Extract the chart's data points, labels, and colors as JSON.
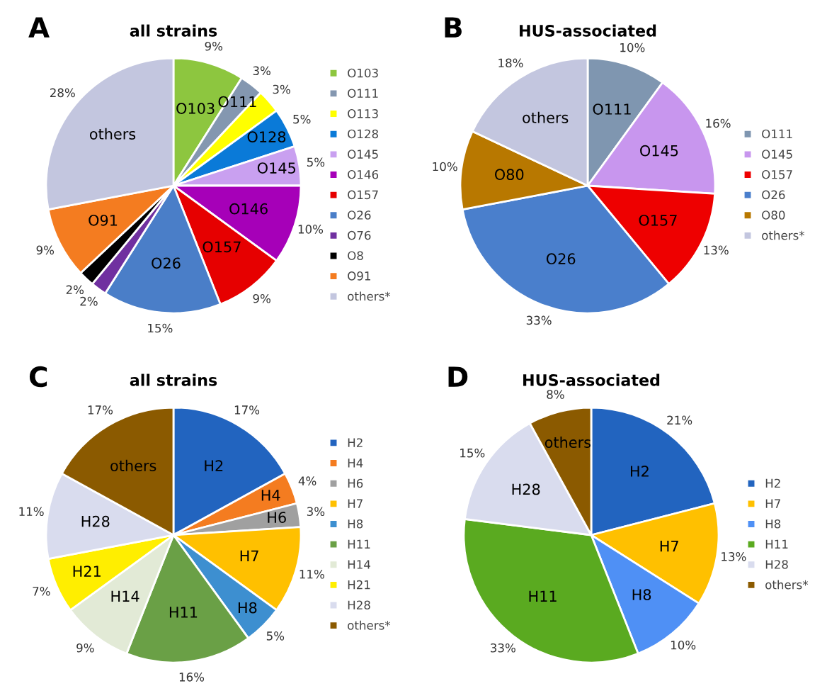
{
  "chart_data": [
    {
      "type": "pie",
      "title": "all strains",
      "legend": "right",
      "categories": [
        "O103",
        "O111",
        "O113",
        "O128",
        "O145",
        "O146",
        "O157",
        "O26",
        "O76",
        "O8",
        "O91",
        "others*"
      ],
      "values": [
        9,
        3,
        3,
        5,
        5,
        10,
        9,
        15,
        2,
        2,
        9,
        28
      ],
      "value_labels": [
        "9%",
        "3%",
        "3%",
        "5%",
        "5%",
        "10%",
        "9%",
        "15%",
        "2%",
        "2%",
        "9%",
        "28%"
      ],
      "colors": [
        "#8dc63f",
        "#8497b0",
        "#ffff00",
        "#0a7ad8",
        "#c9a0f0",
        "#a600b8",
        "#e60000",
        "#4a7ec8",
        "#7030a0",
        "#000000",
        "#f47c20",
        "#c3c6df"
      ],
      "annotations": [
        "A",
        {
          "text": "O103",
          "x": "O103"
        },
        {
          "text": "O111",
          "x": "O111"
        },
        {
          "text": "O128",
          "x": "O128"
        },
        {
          "text": "O145",
          "x": "O145"
        },
        {
          "text": "O146",
          "x": "O146"
        },
        {
          "text": "O157",
          "x": "O157"
        },
        {
          "text": "O26",
          "x": "O26"
        },
        {
          "text": "O91",
          "x": "O91"
        },
        {
          "text": "others",
          "x": "others*"
        }
      ]
    },
    {
      "type": "pie",
      "title": "HUS-associated",
      "legend": "right",
      "categories": [
        "O111",
        "O145",
        "O157",
        "O26",
        "O80",
        "others*"
      ],
      "values": [
        10,
        16,
        13,
        33,
        10,
        18
      ],
      "value_labels": [
        "10%",
        "16%",
        "13%",
        "33%",
        "10%",
        "18%"
      ],
      "colors": [
        "#7f96b0",
        "#c896ee",
        "#ee0000",
        "#4a7fcc",
        "#b87800",
        "#c3c6df"
      ],
      "annotations": [
        "B",
        {
          "text": "O111",
          "x": "O111"
        },
        {
          "text": "O145",
          "x": "O145"
        },
        {
          "text": "O157",
          "x": "O157"
        },
        {
          "text": "O26",
          "x": "O26"
        },
        {
          "text": "O80",
          "x": "O80"
        },
        {
          "text": "others",
          "x": "others*"
        }
      ]
    },
    {
      "type": "pie",
      "title": "all strains",
      "legend": "right",
      "categories": [
        "H2",
        "H4",
        "H6",
        "H7",
        "H8",
        "H11",
        "H14",
        "H21",
        "H28",
        "others*"
      ],
      "values": [
        17,
        4,
        3,
        11,
        5,
        16,
        9,
        7,
        11,
        17
      ],
      "value_labels": [
        "17%",
        "4%",
        "3%",
        "11%",
        "5%",
        "16%",
        "9%",
        "7%",
        "11%",
        "17%"
      ],
      "colors": [
        "#2264bf",
        "#f47c20",
        "#a0a0a0",
        "#ffc000",
        "#3d8fd0",
        "#6aa046",
        "#e2ead6",
        "#ffee00",
        "#d9dcee",
        "#8b5a00"
      ],
      "annotations": [
        "C",
        {
          "text": "H2",
          "x": "H2"
        },
        {
          "text": "H4",
          "x": "H4"
        },
        {
          "text": "H6",
          "x": "H6"
        },
        {
          "text": "H7",
          "x": "H7"
        },
        {
          "text": "H8",
          "x": "H8"
        },
        {
          "text": "H11",
          "x": "H11"
        },
        {
          "text": "H14",
          "x": "H14"
        },
        {
          "text": "H21",
          "x": "H21"
        },
        {
          "text": "H28",
          "x": "H28"
        },
        {
          "text": "others",
          "x": "others*"
        }
      ]
    },
    {
      "type": "pie",
      "title": "HUS-associated",
      "legend": "right",
      "categories": [
        "H2",
        "H7",
        "H8",
        "H11",
        "H28",
        "others*"
      ],
      "values": [
        21,
        13,
        10,
        33,
        15,
        8
      ],
      "value_labels": [
        "21%",
        "13%",
        "10%",
        "33%",
        "15%",
        "8%"
      ],
      "colors": [
        "#2264bf",
        "#ffc000",
        "#4f90f5",
        "#5aaa20",
        "#d9dcee",
        "#8b5a00"
      ],
      "annotations": [
        "D",
        {
          "text": "H2",
          "x": "H2"
        },
        {
          "text": "H7",
          "x": "H7"
        },
        {
          "text": "H8",
          "x": "H8"
        },
        {
          "text": "H11",
          "x": "H11"
        },
        {
          "text": "H28",
          "x": "H28"
        },
        {
          "text": "others",
          "x": "others*"
        }
      ]
    }
  ]
}
